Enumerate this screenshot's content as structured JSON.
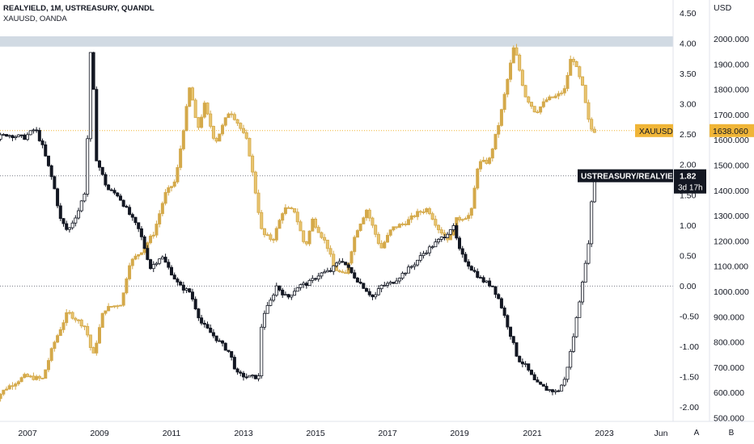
{
  "header": {
    "line1": "REALYIELD, 1M, USTREASURY, QUANDL",
    "line2": "XAUUSD, OANDA"
  },
  "chart_data": {
    "type": "candlestick",
    "timeframe": "1M",
    "left_axis": {
      "ticks": [
        "4.50",
        "4.00",
        "3.50",
        "3.00",
        "2.50",
        "2.00",
        "1.50",
        "1.00",
        "0.50",
        "0.00",
        "-0.50",
        "-1.00",
        "-1.50",
        "-2.00"
      ],
      "range": [
        -2.2,
        4.6
      ]
    },
    "right_axis": {
      "unit": "USD",
      "ticks": [
        "2000.000",
        "1900.000",
        "1800.000",
        "1700.000",
        "1600.000",
        "1500.000",
        "1400.000",
        "1300.000",
        "1200.000",
        "1100.000",
        "1000.000",
        "900.000",
        "800.000",
        "700.000",
        "600.000",
        "500.000"
      ],
      "range": [
        490,
        2090
      ]
    },
    "x_ticks": [
      "2007",
      "2009",
      "2011",
      "2013",
      "2015",
      "2017",
      "2019",
      "2021",
      "2023",
      "Jun"
    ],
    "series": [
      {
        "name": "XAUUSD",
        "axis": "right",
        "color": "#d4a94a",
        "last_value": "1638.060",
        "label": "XAUUSD",
        "points": [
          [
            2006.0,
            550
          ],
          [
            2006.5,
            620
          ],
          [
            2007.0,
            665
          ],
          [
            2007.5,
            655
          ],
          [
            2007.8,
            790
          ],
          [
            2008.2,
            920
          ],
          [
            2008.7,
            860
          ],
          [
            2008.9,
            740
          ],
          [
            2009.2,
            930
          ],
          [
            2009.7,
            955
          ],
          [
            2009.9,
            1110
          ],
          [
            2010.3,
            1170
          ],
          [
            2010.6,
            1235
          ],
          [
            2010.9,
            1385
          ],
          [
            2011.2,
            1440
          ],
          [
            2011.6,
            1820
          ],
          [
            2011.8,
            1635
          ],
          [
            2012.0,
            1740
          ],
          [
            2012.3,
            1590
          ],
          [
            2012.7,
            1720
          ],
          [
            2012.9,
            1675
          ],
          [
            2013.2,
            1590
          ],
          [
            2013.4,
            1410
          ],
          [
            2013.6,
            1230
          ],
          [
            2013.9,
            1205
          ],
          [
            2014.2,
            1330
          ],
          [
            2014.5,
            1320
          ],
          [
            2014.8,
            1175
          ],
          [
            2015.0,
            1285
          ],
          [
            2015.4,
            1185
          ],
          [
            2015.6,
            1095
          ],
          [
            2015.9,
            1060
          ],
          [
            2016.2,
            1235
          ],
          [
            2016.5,
            1325
          ],
          [
            2016.9,
            1170
          ],
          [
            2017.2,
            1250
          ],
          [
            2017.6,
            1275
          ],
          [
            2017.9,
            1310
          ],
          [
            2018.2,
            1330
          ],
          [
            2018.5,
            1250
          ],
          [
            2018.8,
            1205
          ],
          [
            2019.0,
            1285
          ],
          [
            2019.4,
            1305
          ],
          [
            2019.6,
            1510
          ],
          [
            2019.9,
            1515
          ],
          [
            2020.2,
            1680
          ],
          [
            2020.6,
            1975
          ],
          [
            2020.9,
            1780
          ],
          [
            2021.2,
            1710
          ],
          [
            2021.5,
            1760
          ],
          [
            2021.8,
            1775
          ],
          [
            2022.0,
            1800
          ],
          [
            2022.2,
            1940
          ],
          [
            2022.5,
            1810
          ],
          [
            2022.7,
            1650
          ],
          [
            2022.8,
            1638
          ]
        ]
      },
      {
        "name": "USTREASURY/REALYIELD",
        "axis": "left",
        "color": "#131722",
        "last_value": "1.82",
        "countdown": "3d 17h",
        "label": "USTREASURY/REALYIELD",
        "points": [
          [
            2006.0,
            2.4
          ],
          [
            2006.5,
            2.5
          ],
          [
            2007.0,
            2.45
          ],
          [
            2007.3,
            2.6
          ],
          [
            2007.5,
            2.3
          ],
          [
            2007.8,
            1.7
          ],
          [
            2008.0,
            1.1
          ],
          [
            2008.2,
            0.9
          ],
          [
            2008.5,
            1.25
          ],
          [
            2008.7,
            1.6
          ],
          [
            2008.85,
            4.1
          ],
          [
            2009.0,
            2.1
          ],
          [
            2009.3,
            1.6
          ],
          [
            2009.6,
            1.5
          ],
          [
            2009.9,
            1.2
          ],
          [
            2010.2,
            0.9
          ],
          [
            2010.5,
            0.3
          ],
          [
            2010.8,
            0.5
          ],
          [
            2011.0,
            0.3
          ],
          [
            2011.3,
            0.0
          ],
          [
            2011.6,
            -0.1
          ],
          [
            2011.9,
            -0.6
          ],
          [
            2012.3,
            -0.85
          ],
          [
            2012.7,
            -1.1
          ],
          [
            2012.9,
            -1.45
          ],
          [
            2013.2,
            -1.5
          ],
          [
            2013.5,
            -1.5
          ],
          [
            2013.6,
            -0.5
          ],
          [
            2013.8,
            -0.3
          ],
          [
            2014.0,
            0.0
          ],
          [
            2014.3,
            -0.2
          ],
          [
            2014.6,
            0.0
          ],
          [
            2014.9,
            0.05
          ],
          [
            2015.2,
            0.2
          ],
          [
            2015.5,
            0.25
          ],
          [
            2015.8,
            0.45
          ],
          [
            2016.1,
            0.2
          ],
          [
            2016.4,
            0.0
          ],
          [
            2016.7,
            -0.2
          ],
          [
            2016.9,
            0.0
          ],
          [
            2017.2,
            0.05
          ],
          [
            2017.5,
            0.2
          ],
          [
            2017.8,
            0.35
          ],
          [
            2018.1,
            0.55
          ],
          [
            2018.4,
            0.7
          ],
          [
            2018.7,
            0.85
          ],
          [
            2018.9,
            1.0
          ],
          [
            2019.1,
            0.55
          ],
          [
            2019.4,
            0.3
          ],
          [
            2019.7,
            0.1
          ],
          [
            2020.0,
            0.0
          ],
          [
            2020.2,
            -0.25
          ],
          [
            2020.5,
            -0.8
          ],
          [
            2020.7,
            -1.2
          ],
          [
            2020.9,
            -1.3
          ],
          [
            2021.2,
            -1.6
          ],
          [
            2021.5,
            -1.7
          ],
          [
            2021.8,
            -1.75
          ],
          [
            2022.0,
            -1.55
          ],
          [
            2022.2,
            -1.0
          ],
          [
            2022.4,
            -0.3
          ],
          [
            2022.5,
            0.1
          ],
          [
            2022.6,
            0.4
          ],
          [
            2022.7,
            0.9
          ],
          [
            2022.8,
            1.82
          ]
        ]
      }
    ],
    "reference_lines": [
      {
        "axis": "left",
        "value": 0.0,
        "style": "dotted"
      },
      {
        "axis": "left",
        "value": 1.82,
        "style": "dotted"
      },
      {
        "axis": "right",
        "value": 1638.06,
        "style": "dotted",
        "color": "#f0b537"
      }
    ],
    "highlight_band": {
      "axis": "left",
      "from": 3.95,
      "to": 4.12,
      "color": "#c9d3de"
    }
  },
  "footer_buttons": {
    "a": "A",
    "b": "B"
  }
}
